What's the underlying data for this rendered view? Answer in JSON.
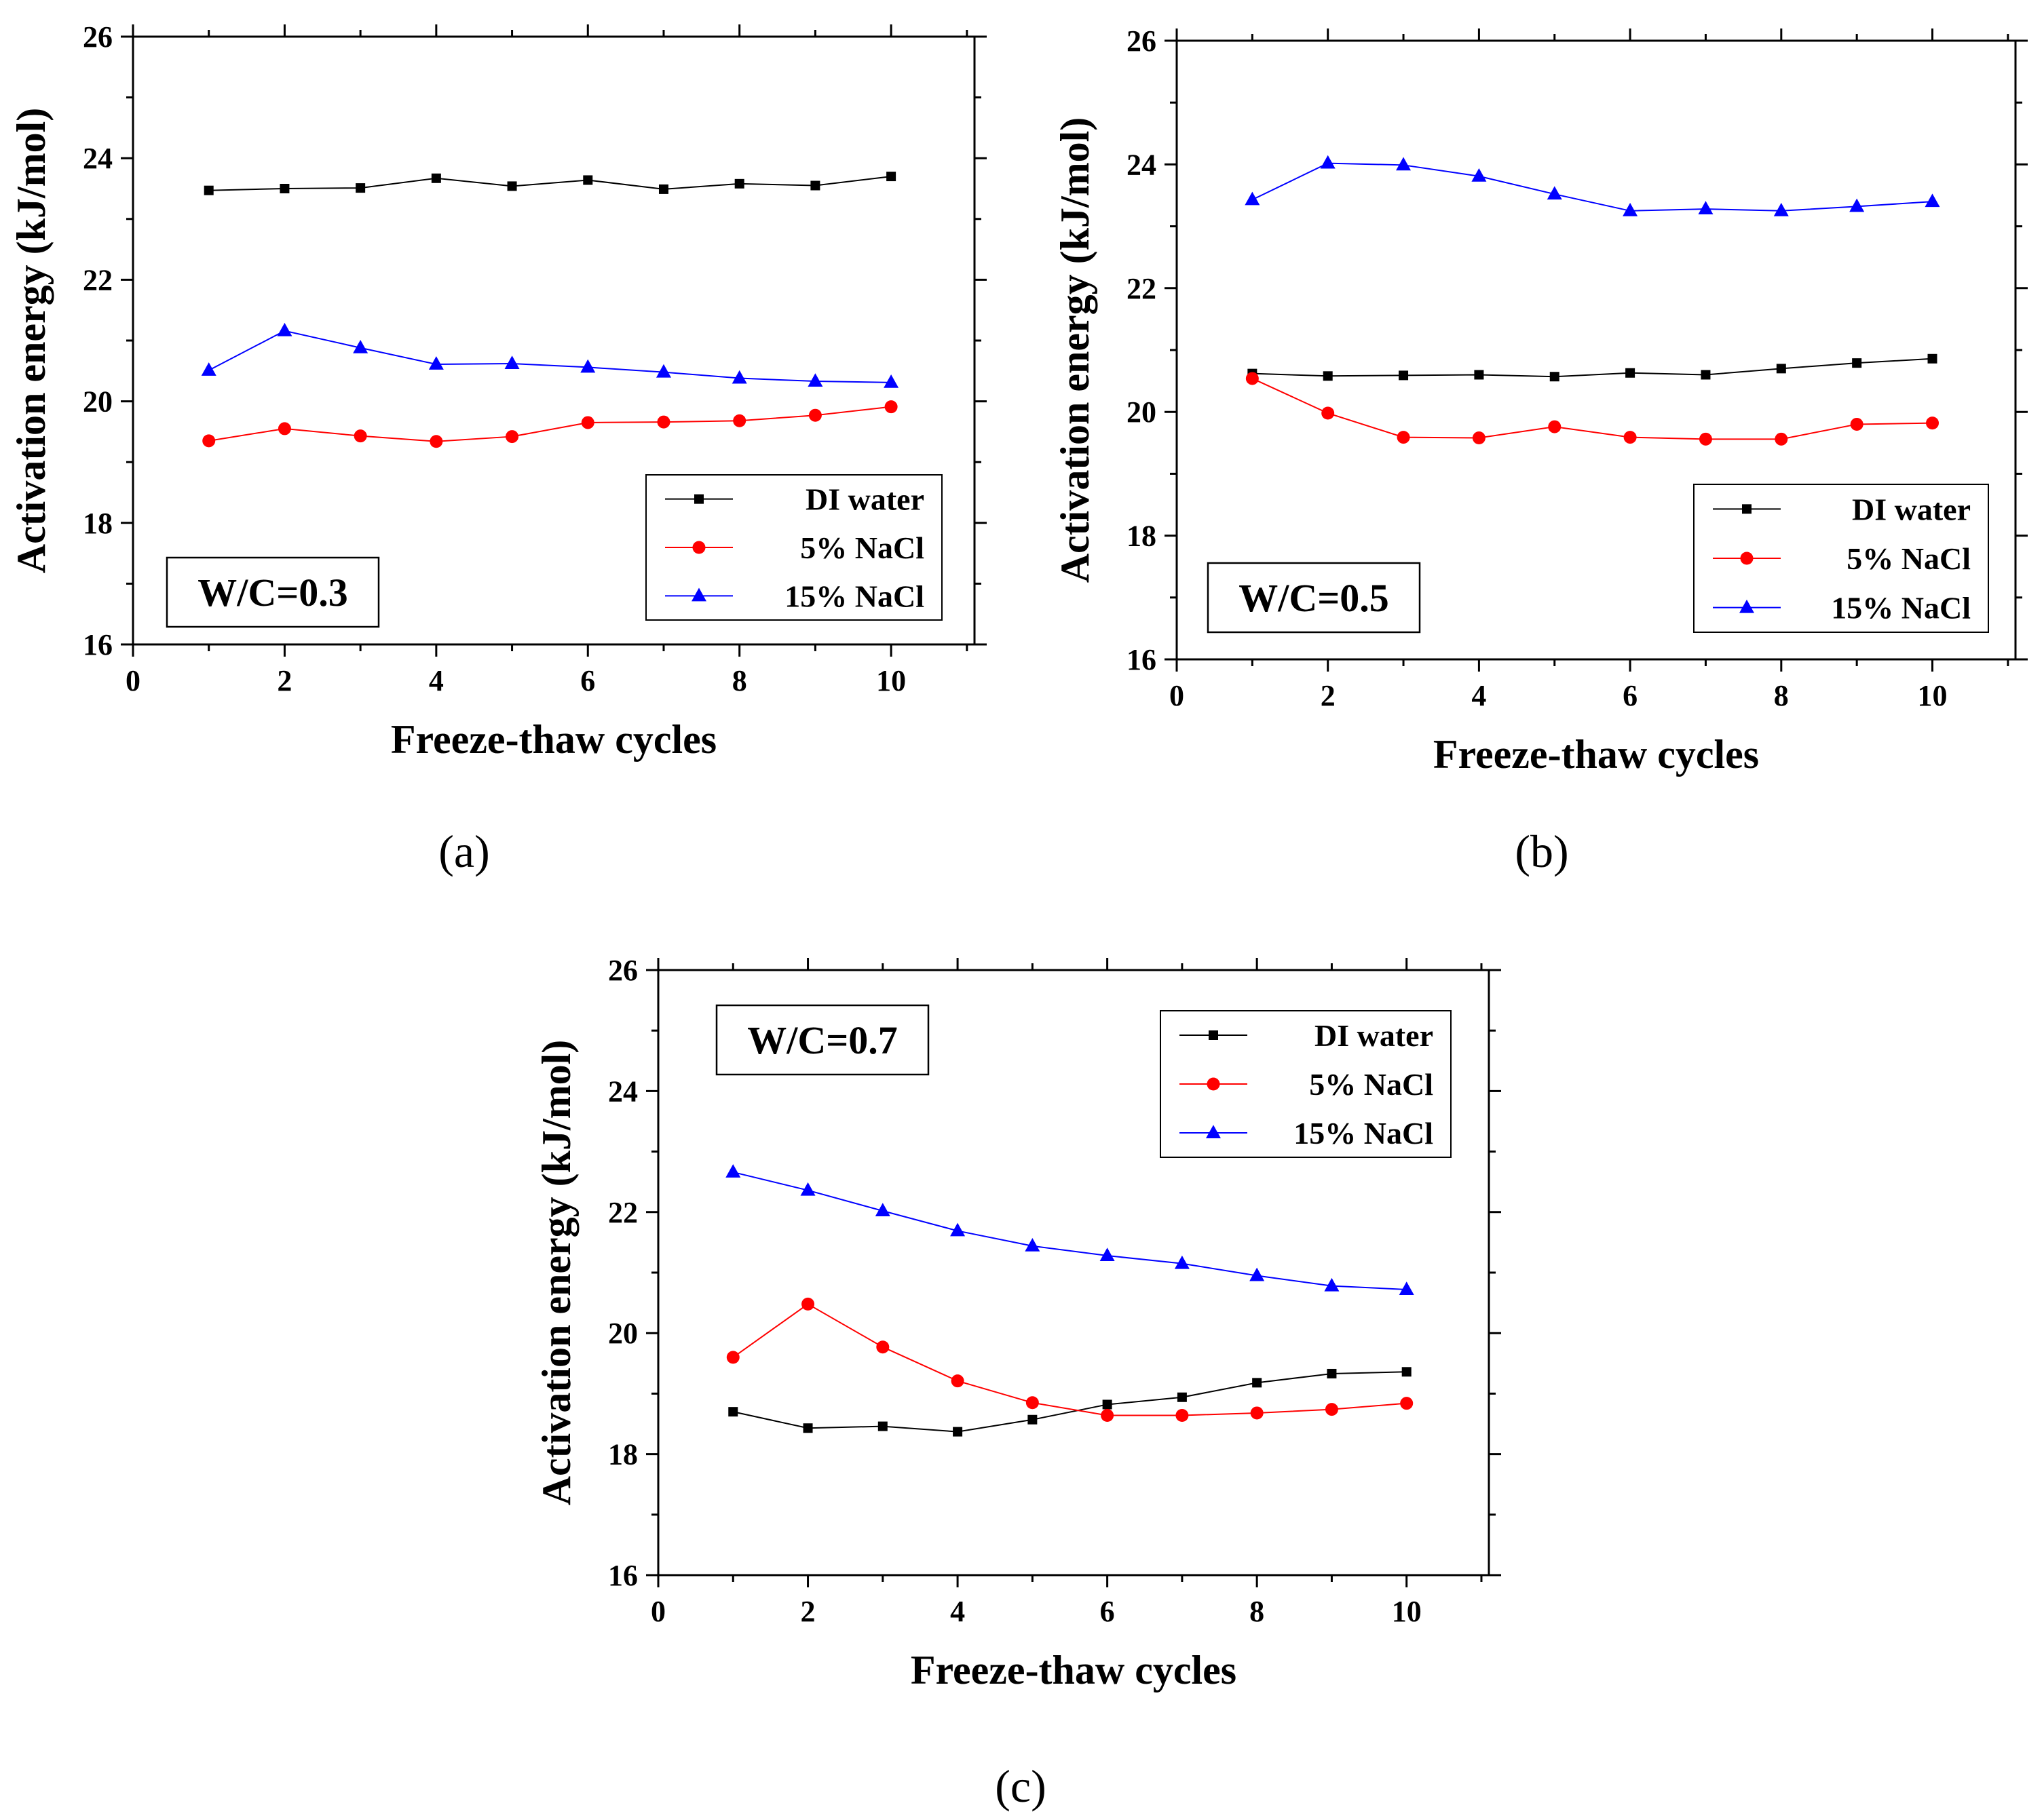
{
  "chart_data": [
    {
      "type": "line",
      "panel_label": "(a)",
      "annotation": "W/C=0.3",
      "xlabel": "Freeze-thaw cycles",
      "ylabel": "Activation energy (kJ/mol)",
      "xlim": [
        0,
        11.1
      ],
      "ylim": [
        16,
        26
      ],
      "xticks": [
        0,
        2,
        4,
        6,
        8,
        10
      ],
      "yticks": [
        16,
        18,
        20,
        22,
        24,
        26
      ],
      "legend_position": "bottom-right",
      "x": [
        1,
        2,
        3,
        4,
        5,
        6,
        7,
        8,
        9,
        10
      ],
      "series": [
        {
          "name": "DI water",
          "color": "#000000",
          "marker": "square",
          "values": [
            23.47,
            23.5,
            23.51,
            23.67,
            23.54,
            23.64,
            23.49,
            23.58,
            23.55,
            23.7
          ]
        },
        {
          "name": "5% NaCl",
          "color": "#ff0000",
          "marker": "circle",
          "values": [
            19.35,
            19.55,
            19.43,
            19.34,
            19.42,
            19.65,
            19.66,
            19.68,
            19.77,
            19.91
          ]
        },
        {
          "name": "15% NaCl",
          "color": "#0000ff",
          "marker": "triangle",
          "values": [
            20.51,
            21.16,
            20.88,
            20.61,
            20.62,
            20.56,
            20.48,
            20.38,
            20.33,
            20.31
          ]
        }
      ]
    },
    {
      "type": "line",
      "panel_label": "(b)",
      "annotation": "W/C=0.5",
      "xlabel": "Freeze-thaw cycles",
      "ylabel": "Activation energy (kJ/mol)",
      "xlim": [
        0,
        11.1
      ],
      "ylim": [
        16,
        26
      ],
      "xticks": [
        0,
        2,
        4,
        6,
        8,
        10
      ],
      "yticks": [
        16,
        18,
        20,
        22,
        24,
        26
      ],
      "legend_position": "bottom-right",
      "x": [
        1,
        2,
        3,
        4,
        5,
        6,
        7,
        8,
        9,
        10
      ],
      "series": [
        {
          "name": "DI water",
          "color": "#000000",
          "marker": "square",
          "values": [
            20.62,
            20.58,
            20.59,
            20.6,
            20.57,
            20.63,
            20.6,
            20.7,
            20.79,
            20.86
          ]
        },
        {
          "name": "5% NaCl",
          "color": "#ff0000",
          "marker": "circle",
          "values": [
            20.54,
            19.98,
            19.59,
            19.58,
            19.76,
            19.59,
            19.56,
            19.56,
            19.8,
            19.82
          ]
        },
        {
          "name": "15% NaCl",
          "color": "#0000ff",
          "marker": "triangle",
          "values": [
            23.43,
            24.02,
            23.99,
            23.81,
            23.52,
            23.25,
            23.28,
            23.25,
            23.32,
            23.4
          ]
        }
      ]
    },
    {
      "type": "line",
      "panel_label": "(c)",
      "annotation": "W/C=0.7",
      "xlabel": "Freeze-thaw cycles",
      "ylabel": "Activation energy (kJ/mol)",
      "xlim": [
        0,
        11.1
      ],
      "ylim": [
        16,
        26
      ],
      "xticks": [
        0,
        2,
        4,
        6,
        8,
        10
      ],
      "yticks": [
        16,
        18,
        20,
        22,
        24,
        26
      ],
      "legend_position": "top-right",
      "x": [
        1,
        2,
        3,
        4,
        5,
        6,
        7,
        8,
        9,
        10
      ],
      "series": [
        {
          "name": "DI water",
          "color": "#000000",
          "marker": "square",
          "values": [
            18.7,
            18.43,
            18.46,
            18.37,
            18.57,
            18.82,
            18.94,
            19.18,
            19.33,
            19.36
          ]
        },
        {
          "name": "5% NaCl",
          "color": "#ff0000",
          "marker": "circle",
          "values": [
            19.6,
            20.48,
            19.77,
            19.21,
            18.85,
            18.64,
            18.64,
            18.68,
            18.74,
            18.84
          ]
        },
        {
          "name": "15% NaCl",
          "color": "#0000ff",
          "marker": "triangle",
          "values": [
            22.66,
            22.36,
            22.02,
            21.69,
            21.44,
            21.28,
            21.15,
            20.95,
            20.78,
            20.72
          ]
        }
      ]
    }
  ]
}
